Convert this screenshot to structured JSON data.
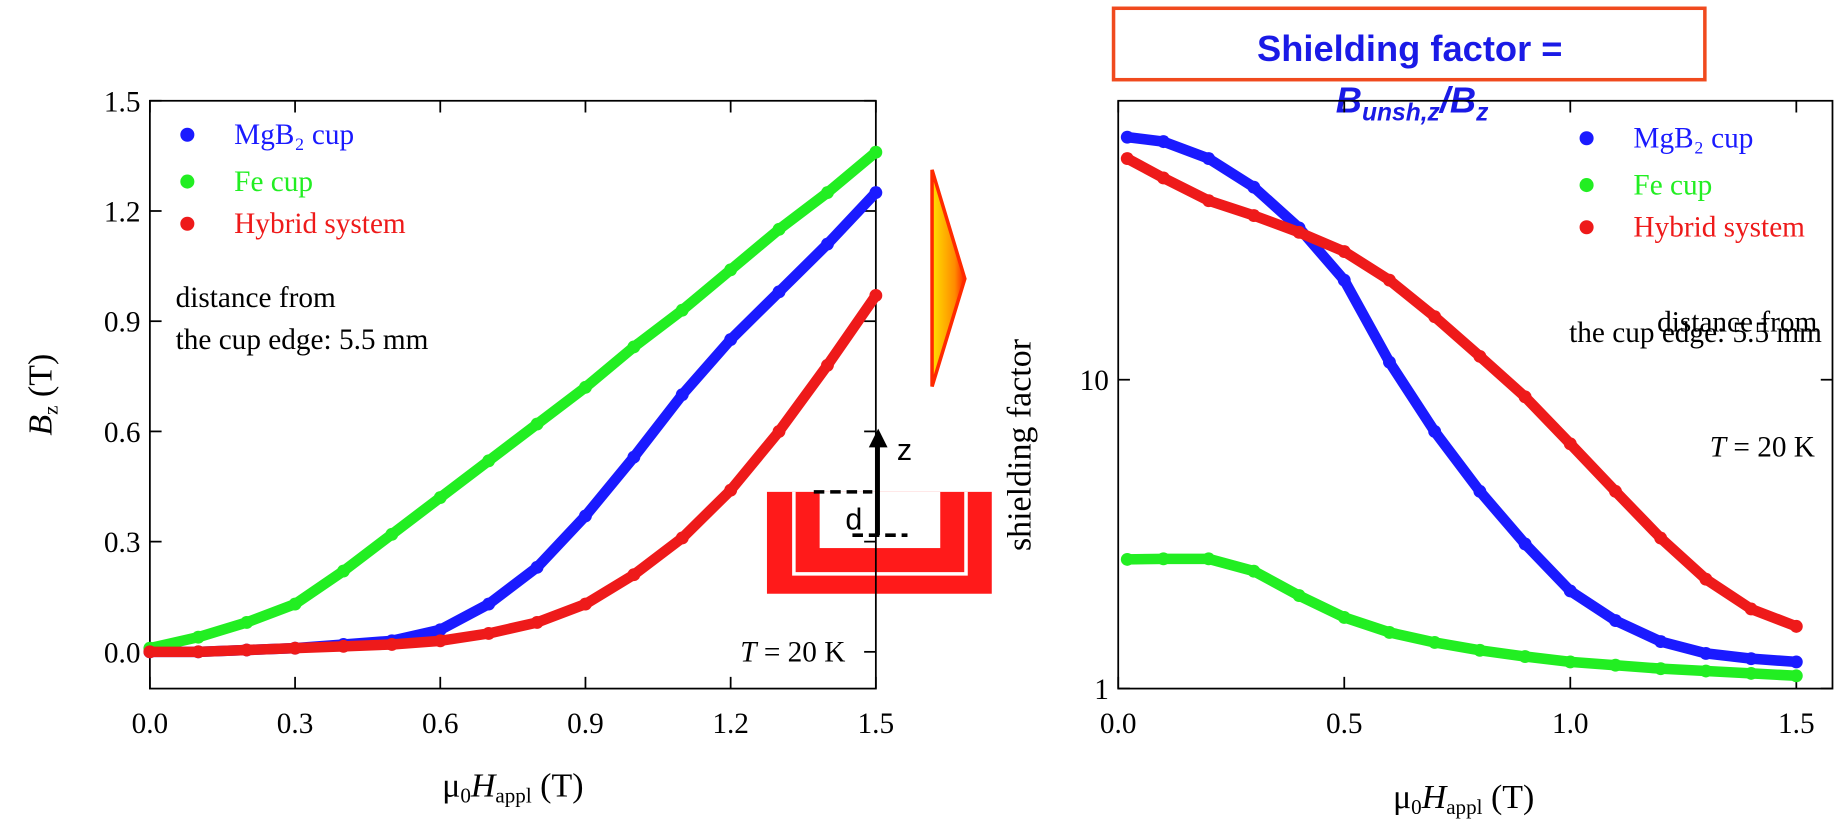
{
  "chart_data": [
    {
      "type": "line",
      "xlabel": [
        "μ",
        "0",
        "H",
        "appl",
        " (T)"
      ],
      "ylabel": [
        "B",
        "z",
        " (T)"
      ],
      "xlim": [
        0,
        1.5
      ],
      "ylim": [
        -0.1,
        1.5
      ],
      "xticks": [
        {
          "value": 0,
          "label": "0.0"
        },
        0.3,
        0.6,
        0.9,
        1.2,
        1.5
      ],
      "yticks": [
        {
          "value": 0,
          "label": "0.0"
        },
        0.3,
        0.6,
        0.9,
        1.2,
        1.5
      ],
      "legend": "upper left",
      "series": [
        {
          "name": "MgB₂ cup",
          "color": "#1a1aff",
          "x": [
            0,
            0.1,
            0.2,
            0.3,
            0.4,
            0.5,
            0.6,
            0.7,
            0.8,
            0.9,
            1.0,
            1.1,
            1.2,
            1.3,
            1.4,
            1.5
          ],
          "values": [
            0,
            0,
            0.005,
            0.01,
            0.02,
            0.03,
            0.06,
            0.13,
            0.23,
            0.37,
            0.53,
            0.7,
            0.85,
            0.98,
            1.11,
            1.25
          ]
        },
        {
          "name": "Fe cup",
          "color": "#22ee22",
          "x": [
            0,
            0.1,
            0.2,
            0.3,
            0.4,
            0.5,
            0.6,
            0.7,
            0.8,
            0.9,
            1.0,
            1.1,
            1.2,
            1.3,
            1.4,
            1.5
          ],
          "values": [
            0.01,
            0.04,
            0.08,
            0.13,
            0.22,
            0.32,
            0.42,
            0.52,
            0.62,
            0.72,
            0.83,
            0.93,
            1.04,
            1.15,
            1.25,
            1.36
          ]
        },
        {
          "name": "Hybrid system",
          "color": "#ee1a1a",
          "x": [
            0,
            0.1,
            0.2,
            0.3,
            0.4,
            0.5,
            0.6,
            0.7,
            0.8,
            0.9,
            1.0,
            1.1,
            1.2,
            1.3,
            1.4,
            1.5
          ],
          "values": [
            0,
            0,
            0.005,
            0.01,
            0.015,
            0.02,
            0.03,
            0.05,
            0.08,
            0.13,
            0.21,
            0.31,
            0.44,
            0.6,
            0.78,
            0.97
          ]
        }
      ],
      "annotations": [
        "distance from",
        "the cup edge: 5.5 mm",
        [
          "T",
          " = 20 K"
        ]
      ]
    },
    {
      "type": "line",
      "log_y": true,
      "xlabel": [
        "μ",
        "0",
        "H",
        "appl",
        " (T)"
      ],
      "ylabel": [
        "shielding factor"
      ],
      "xlim": [
        0,
        1.58
      ],
      "ylim": [
        1,
        80
      ],
      "xticks": [
        {
          "value": 0,
          "label": "0.0"
        },
        0.5,
        {
          "value": 1,
          "label": "1.0"
        },
        1.5
      ],
      "yticks": [
        1,
        10
      ],
      "legend": "upper right",
      "series": [
        {
          "name": "MgB₂ cup",
          "color": "#1a1aff",
          "x": [
            0.02,
            0.1,
            0.2,
            0.3,
            0.4,
            0.5,
            0.6,
            0.7,
            0.8,
            0.9,
            1.0,
            1.1,
            1.2,
            1.3,
            1.4,
            1.5
          ],
          "values": [
            61,
            59,
            52,
            42,
            31,
            21,
            11.4,
            6.8,
            4.35,
            2.94,
            2.07,
            1.66,
            1.42,
            1.3,
            1.25,
            1.22
          ]
        },
        {
          "name": "Fe cup",
          "color": "#22ee22",
          "x": [
            0.02,
            0.1,
            0.2,
            0.3,
            0.4,
            0.5,
            0.6,
            0.7,
            0.8,
            0.9,
            1.0,
            1.1,
            1.2,
            1.3,
            1.4,
            1.5
          ],
          "values": [
            2.62,
            2.63,
            2.63,
            2.4,
            2.0,
            1.7,
            1.52,
            1.41,
            1.33,
            1.27,
            1.22,
            1.19,
            1.16,
            1.14,
            1.12,
            1.1
          ]
        },
        {
          "name": "Hybrid system",
          "color": "#ee1a1a",
          "x": [
            0.02,
            0.1,
            0.2,
            0.3,
            0.4,
            0.5,
            0.6,
            0.7,
            0.8,
            0.9,
            1.0,
            1.1,
            1.2,
            1.3,
            1.4,
            1.5
          ],
          "values": [
            52,
            45,
            38,
            34,
            30,
            26,
            21,
            16,
            11.9,
            8.8,
            6.2,
            4.35,
            3.07,
            2.26,
            1.81,
            1.59
          ]
        }
      ],
      "annotations": [
        "distance from",
        "the cup edge: 5.5 mm",
        [
          "T",
          " = 20 K"
        ]
      ]
    }
  ],
  "title_box": [
    "Shielding factor =",
    [
      "B",
      "unsh,z",
      "/B",
      "z"
    ]
  ],
  "inset": {
    "labels": [
      "z",
      "d"
    ]
  }
}
